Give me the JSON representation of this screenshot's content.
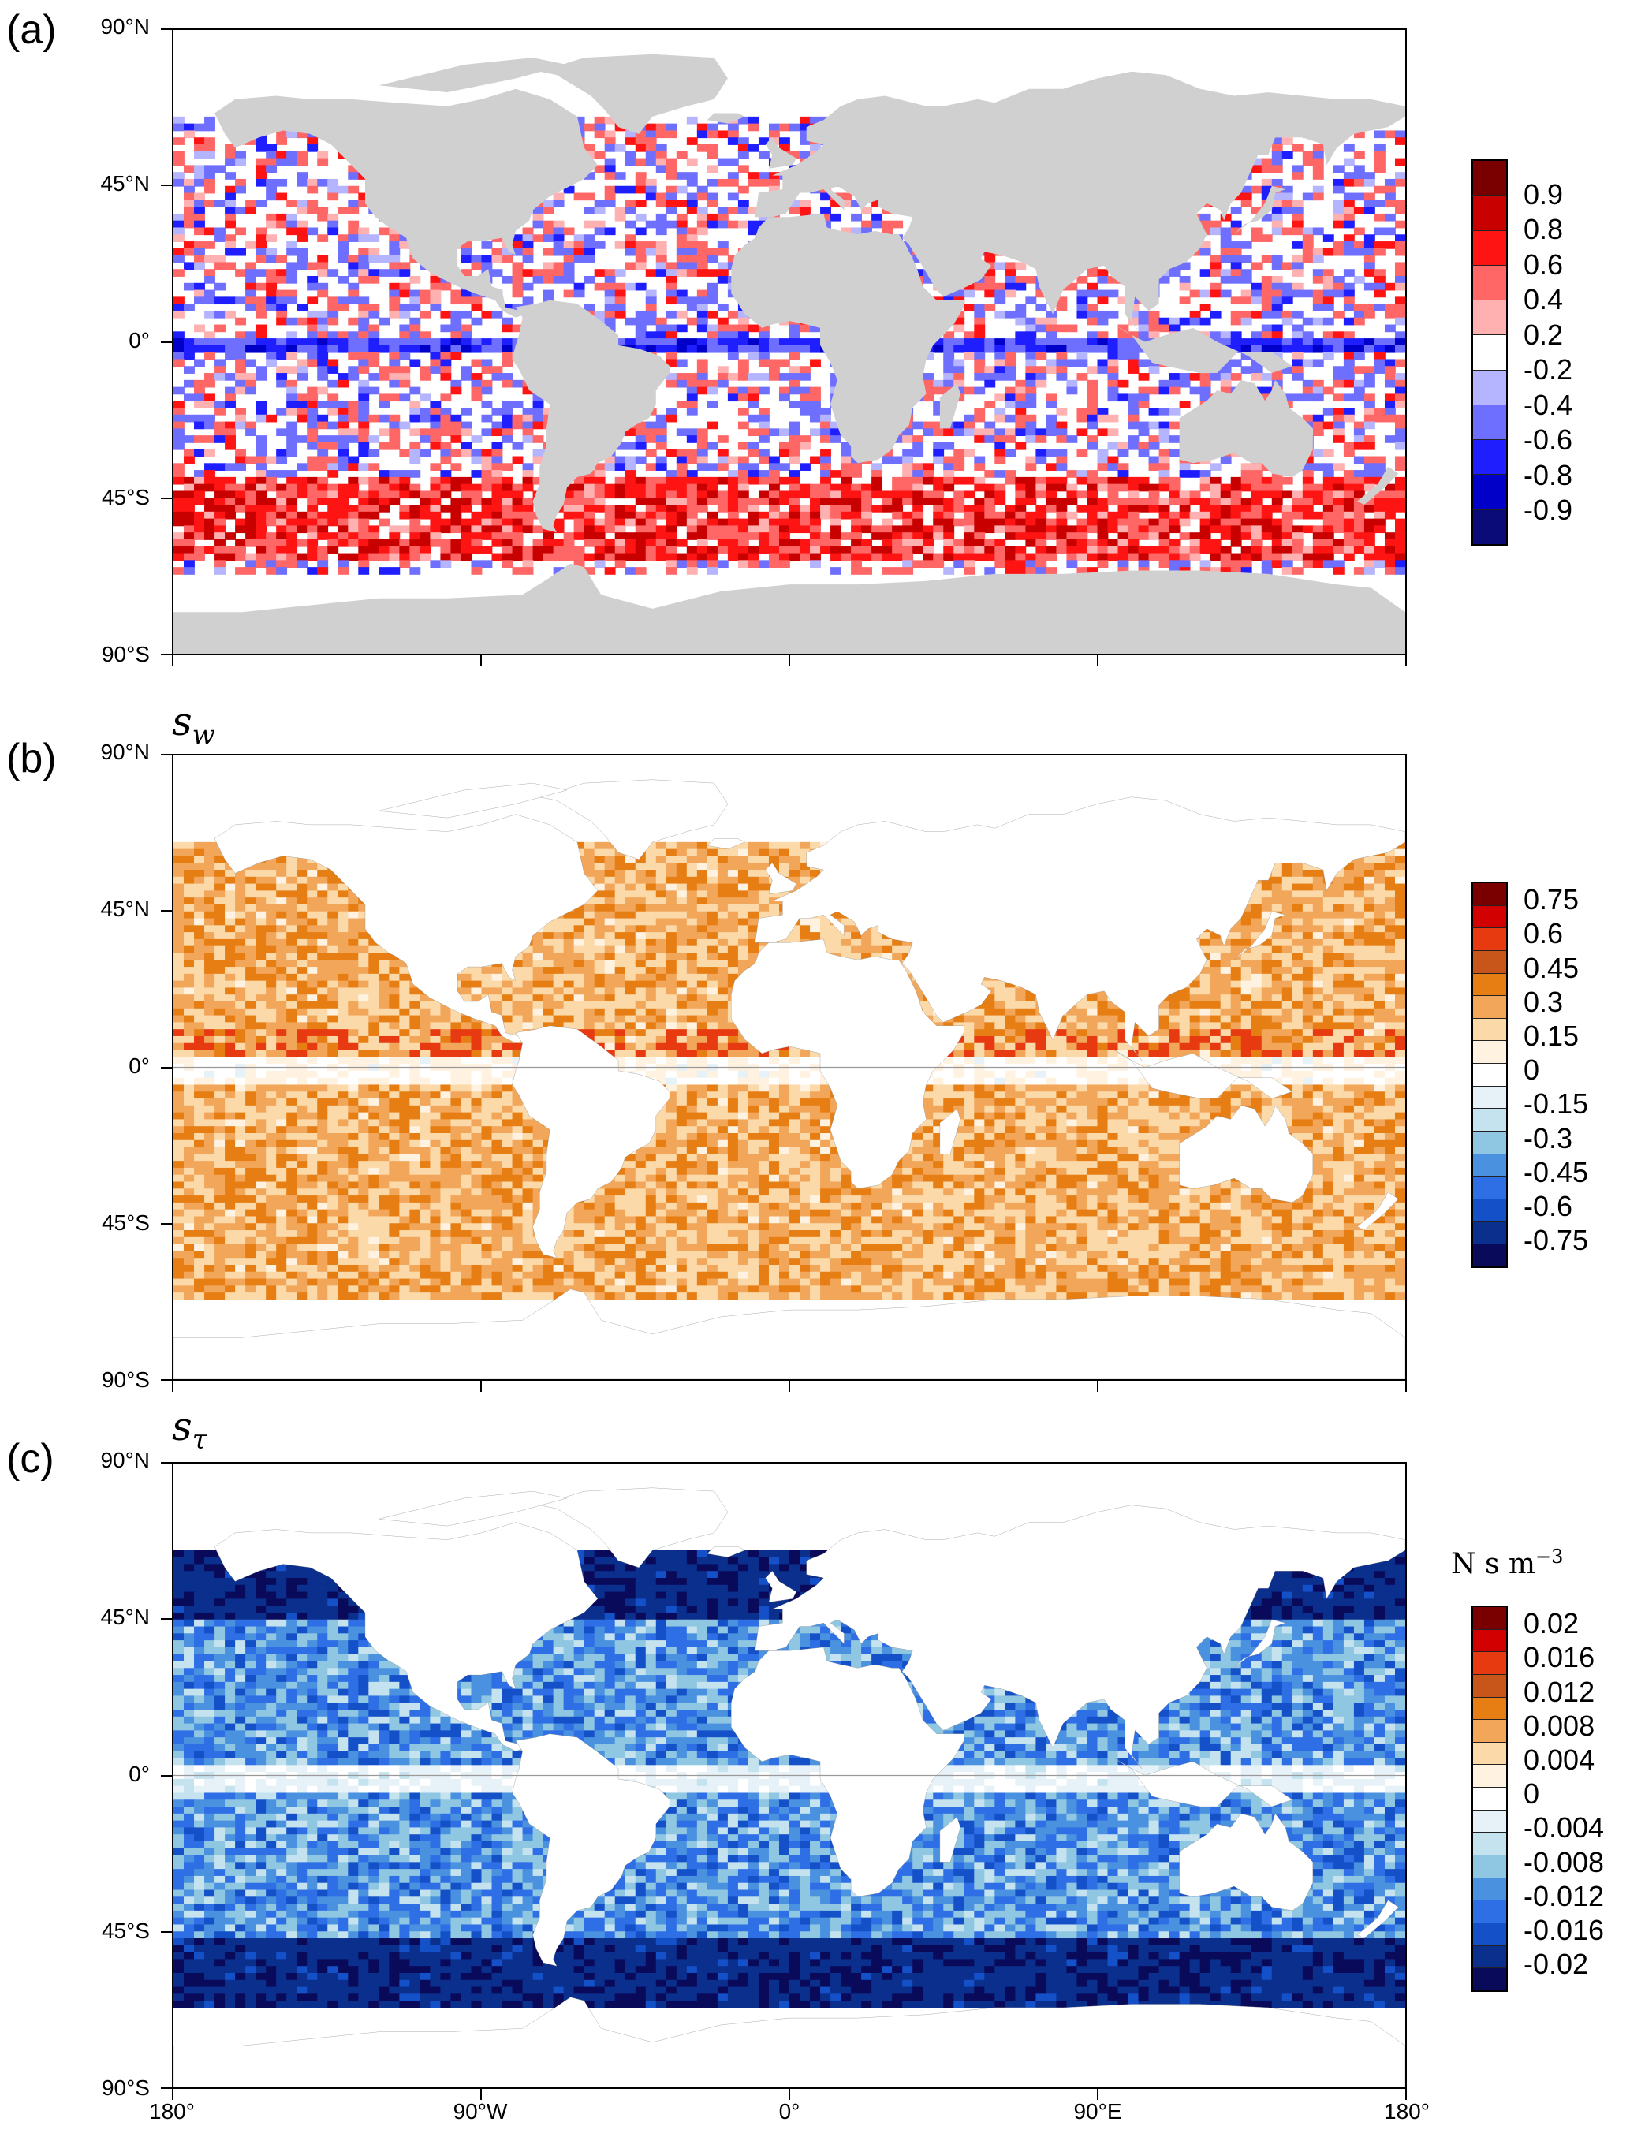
{
  "panels": [
    {
      "letter": "(a)",
      "title_symbol": "",
      "title_sub": "",
      "units": "",
      "units_sup": "",
      "land": "#d0d0d0",
      "palette": [
        "#7a0000",
        "#c80000",
        "#ff1414",
        "#ff6666",
        "#ffb0b0",
        "#ffffff",
        "#b4b4ff",
        "#6e6eff",
        "#1e1eff",
        "#0000c8",
        "#0a0a78"
      ],
      "labels": [
        "0.9",
        "0.8",
        "0.6",
        "0.4",
        "0.2",
        "-0.2",
        "-0.4",
        "-0.6",
        "-0.8",
        "-0.9"
      ],
      "ocean_scheme": "correlation"
    },
    {
      "letter": "(b)",
      "title_symbol": "s",
      "title_sub": "w",
      "units": "",
      "units_sup": "",
      "land": "#ffffff",
      "palette": [
        "#7a0000",
        "#d20000",
        "#e83a10",
        "#c8551a",
        "#e67e14",
        "#f2a65a",
        "#fbd9a8",
        "#fff2e0",
        "#ffffff",
        "#e6f2f8",
        "#c4e3ef",
        "#8fc6e2",
        "#4a92e0",
        "#2f6fe6",
        "#1450c8",
        "#0a2f8c",
        "#0a0a5a"
      ],
      "labels": [
        "0.75",
        "0.6",
        "0.45",
        "0.3",
        "0.15",
        "0",
        "-0.15",
        "-0.3",
        "-0.45",
        "-0.6",
        "-0.75"
      ],
      "ocean_scheme": "warm"
    },
    {
      "letter": "(c)",
      "title_symbol": "s",
      "title_sub": "τ",
      "units": "N s m",
      "units_sup": "−3",
      "land": "#ffffff",
      "palette": [
        "#7a0000",
        "#d20000",
        "#e83a10",
        "#c8551a",
        "#e67e14",
        "#f2a65a",
        "#fbd9a8",
        "#fff2e0",
        "#ffffff",
        "#e6f2f8",
        "#c4e3ef",
        "#8fc6e2",
        "#4a92e0",
        "#2f6fe6",
        "#1450c8",
        "#0a2f8c",
        "#0a0a5a"
      ],
      "labels": [
        "0.02",
        "0.016",
        "0.012",
        "0.008",
        "0.004",
        "0",
        "-0.004",
        "-0.008",
        "-0.012",
        "-0.016",
        "-0.02"
      ],
      "ocean_scheme": "cool"
    }
  ],
  "lat_labels": [
    "90°N",
    "45°N",
    "0°",
    "45°S",
    "90°S"
  ],
  "lon_labels": [
    "180°",
    "90°W",
    "0°",
    "90°E",
    "180°"
  ]
}
